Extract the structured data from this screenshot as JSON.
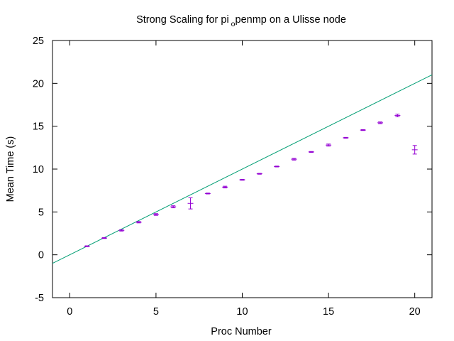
{
  "chart_data": {
    "type": "scatter",
    "title": "Strong Scaling for pi",
    "title_subscript": "o",
    "title_suffix": "penmp on a Ulisse node",
    "xlabel": "Proc Number",
    "ylabel": "Mean Time (s)",
    "xlim": [
      -1,
      21
    ],
    "ylim": [
      -5,
      25
    ],
    "xticks": [
      0,
      5,
      10,
      15,
      20
    ],
    "yticks": [
      -5,
      0,
      5,
      10,
      15,
      20,
      25
    ],
    "grid": false,
    "colors": {
      "points": "#9400d3",
      "ideal": "#009e73"
    },
    "series": [
      {
        "values_x": [
          1,
          2,
          3,
          4,
          5,
          6,
          7,
          8,
          9,
          10,
          11,
          12,
          13,
          14,
          15,
          16,
          17,
          18,
          19,
          20
        ],
        "values_y": [
          1.0,
          1.95,
          2.85,
          3.8,
          4.7,
          5.6,
          6.0,
          7.15,
          7.9,
          8.75,
          9.45,
          10.3,
          11.15,
          12.0,
          12.8,
          13.65,
          14.55,
          15.4,
          16.25,
          12.25
        ],
        "errors": [
          0.05,
          0.05,
          0.08,
          0.08,
          0.1,
          0.12,
          0.65,
          0.05,
          0.1,
          0.05,
          0.05,
          0.05,
          0.1,
          0.05,
          0.12,
          0.05,
          0.05,
          0.1,
          0.15,
          0.5
        ]
      },
      {
        "line": {
          "slope": 1,
          "intercept": 0
        }
      }
    ]
  }
}
